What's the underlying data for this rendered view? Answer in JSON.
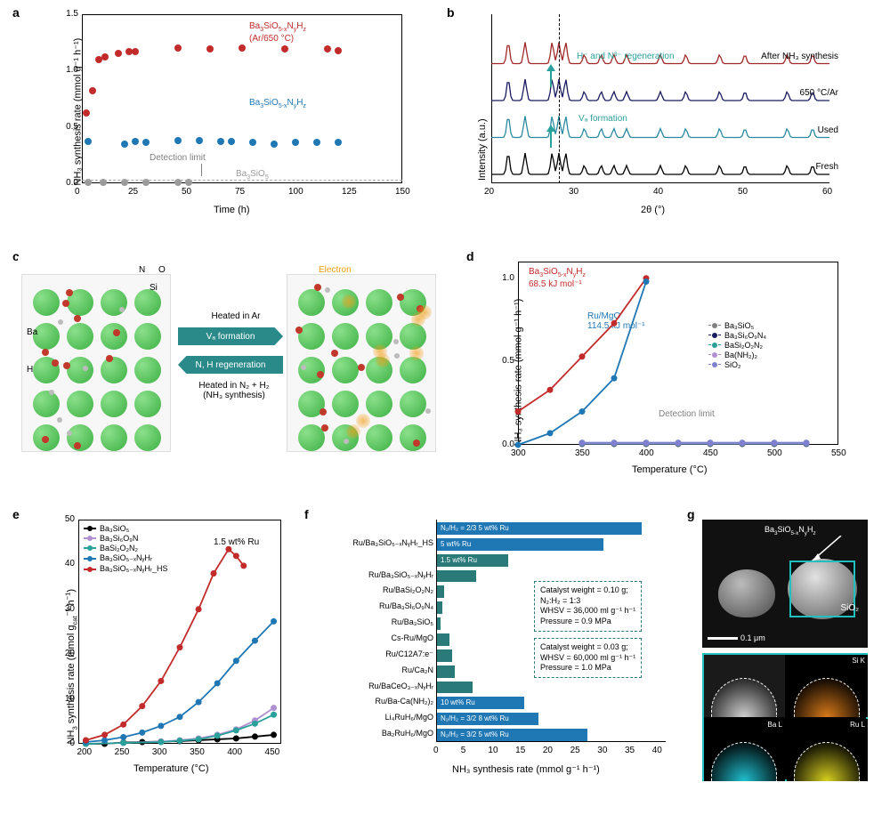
{
  "labels": {
    "a": "a",
    "b": "b",
    "c": "c",
    "d": "d",
    "e": "e",
    "f": "f",
    "g": "g"
  },
  "panel_a": {
    "type": "scatter",
    "x_label": "Time (h)",
    "y_label": "NH₃ synthesis rate (mmol g⁻¹ h⁻¹)",
    "xlim": [
      0,
      150
    ],
    "xtick_step": 25,
    "ylim": [
      0,
      1.5
    ],
    "ytick_step": 0.5,
    "detection_text": "Detection limit",
    "series": [
      {
        "name": "Ba₃SiO₅₋ₓNᵧHᵣ (Ar/650 °C)",
        "label": "Ba₃SiO₅₋ₓNᵧHᵣ\n(Ar/650 °C)",
        "color": "#c32b2b",
        "x": [
          2,
          5,
          8,
          11,
          17,
          22,
          25,
          45,
          60,
          75,
          95,
          115,
          120
        ],
        "y": [
          0.62,
          0.82,
          1.1,
          1.12,
          1.15,
          1.17,
          1.17,
          1.2,
          1.19,
          1.2,
          1.19,
          1.19,
          1.18
        ]
      },
      {
        "name": "Ba₃SiO₅₋ₓNᵧHᵣ",
        "label": "Ba₃SiO₅₋ₓNᵧHᵣ",
        "color": "#1f77b4",
        "x": [
          3,
          20,
          25,
          30,
          45,
          55,
          65,
          70,
          80,
          90,
          100,
          110,
          120
        ],
        "y": [
          0.37,
          0.35,
          0.37,
          0.36,
          0.38,
          0.38,
          0.37,
          0.37,
          0.36,
          0.35,
          0.36,
          0.36,
          0.36
        ]
      },
      {
        "name": "Ba₃SiO₅",
        "label": "Ba₃SiO₅",
        "color": "#9a9a9a",
        "x": [
          3,
          10,
          20,
          30,
          45,
          50
        ],
        "y": [
          0.01,
          0.01,
          0.01,
          0.01,
          0.01,
          0.01
        ]
      }
    ]
  },
  "panel_b": {
    "type": "xrd",
    "x_label": "2θ (°)",
    "y_label": "Intensity (a.u.)",
    "xlim": [
      20,
      60
    ],
    "xtick_step": 10,
    "traces": [
      {
        "label": "After NH₃ synthesis",
        "color": "#a02828"
      },
      {
        "label": "650 °C/Ar",
        "color": "#1a1a60"
      },
      {
        "label": "Used",
        "color": "#2a8aa0"
      },
      {
        "label": "Fresh",
        "color": "#000000"
      }
    ],
    "annotations": [
      {
        "text": "H⁻ and N³⁻ regeneration",
        "color": "#2aa09a"
      },
      {
        "text": "Vₐ formation",
        "color": "#2aa09a"
      }
    ],
    "peak_dash_x": 28
  },
  "panel_c": {
    "type": "schematic",
    "top_text": "Heated in Ar",
    "band1": "Vₐ formation",
    "band2": "N, H regeneration",
    "bottom_text": "Heated in N₂ + H₂\n(NH₃ synthesis)",
    "legend": {
      "N": "N",
      "O": "O",
      "Si": "Si",
      "Ba": "Ba",
      "H": "H",
      "Electron": "Electron"
    },
    "colors": {
      "Ba": "#3cb043",
      "O": "#c0392b",
      "N": "#2c3e50",
      "Si": "#6a5acd",
      "H": "#bcbcbc",
      "e": "#f39c12",
      "band": "#2a8a8a"
    }
  },
  "panel_d": {
    "type": "line",
    "x_label": "Temperature (°C)",
    "y_label": "NH₃ synthesis rate (mmol g⁻¹ h⁻¹)",
    "xlim": [
      300,
      550
    ],
    "xtick_step": 50,
    "ylim": [
      0,
      1.1
    ],
    "yticks": [
      0,
      0.5,
      1.0
    ],
    "detection_text": "Detection limit",
    "legend": [
      {
        "name": "Ba₃SiO₅",
        "marker": "square",
        "color": "#808080"
      },
      {
        "name": "Ba₃Si₆O₉N₄",
        "marker": "circle",
        "color": "#1a1a60"
      },
      {
        "name": "BaSi₂O₂N₂",
        "marker": "triangle",
        "color": "#2aa09a"
      },
      {
        "name": "Ba(NH₂)₂",
        "marker": "tri-down",
        "color": "#b090d0"
      },
      {
        "name": "SiO₂",
        "marker": "diamond",
        "color": "#8080d0"
      }
    ],
    "main": [
      {
        "name": "Ba₃SiO₅₋ₓNᵧHᵣ",
        "sub": "68.5 kJ mol⁻¹",
        "color": "#c32b2b",
        "x": [
          300,
          325,
          350,
          375,
          400
        ],
        "y": [
          0.2,
          0.33,
          0.53,
          0.73,
          1.0
        ]
      },
      {
        "name": "Ru/MgO",
        "sub": "114.5 kJ mol⁻¹",
        "color": "#1f77b4",
        "x": [
          300,
          325,
          350,
          375,
          400
        ],
        "y": [
          0.0,
          0.07,
          0.2,
          0.4,
          0.98
        ]
      }
    ]
  },
  "panel_e": {
    "type": "line",
    "x_label": "Temperature (°C)",
    "y_label": "NH₃ synthesis rate (mmol g_cat⁻¹ h⁻¹)",
    "xlim": [
      190,
      460
    ],
    "xtick_step": 50,
    "start_tick": 200,
    "ylim": [
      0,
      50
    ],
    "ytick_step": 10,
    "ru_text": "1.5 wt% Ru",
    "series": [
      {
        "name": "Ba₃SiO₅",
        "color": "#000000",
        "x": [
          200,
          225,
          250,
          275,
          300,
          325,
          350,
          375,
          400,
          425,
          450
        ],
        "y": [
          0,
          0,
          0.3,
          0.4,
          0.5,
          0.6,
          0.8,
          1.0,
          1.2,
          1.6,
          2.0
        ]
      },
      {
        "name": "Ba₃Si₆O₉N",
        "color": "#b090d0",
        "x": [
          200,
          250,
          300,
          325,
          350,
          375,
          400,
          425,
          450
        ],
        "y": [
          0,
          0.2,
          0.5,
          0.8,
          1.2,
          2.0,
          3.2,
          5.2,
          8.0
        ]
      },
      {
        "name": "BaSi₂O₂N₂",
        "color": "#2aa09a",
        "x": [
          200,
          250,
          300,
          325,
          350,
          375,
          400,
          425,
          450
        ],
        "y": [
          0,
          0.2,
          0.4,
          0.7,
          1.0,
          1.8,
          3.0,
          4.5,
          6.5
        ]
      },
      {
        "name": "Ba₃SiO₅₋ₓNᵧHᵣ",
        "color": "#1f77b4",
        "x": [
          200,
          225,
          250,
          275,
          300,
          325,
          350,
          375,
          400,
          425,
          450
        ],
        "y": [
          0.4,
          0.8,
          1.5,
          2.5,
          4.0,
          6.0,
          9.3,
          13.5,
          18.5,
          23.0,
          27.3
        ]
      },
      {
        "name": "Ba₃SiO₅₋ₓNᵧHᵣ_HS",
        "color": "#c32b2b",
        "x": [
          200,
          225,
          250,
          275,
          300,
          325,
          350,
          370,
          390,
          400,
          410
        ],
        "y": [
          0.8,
          2.0,
          4.3,
          8.4,
          14.0,
          21.5,
          30.0,
          38.0,
          43.4,
          41.9,
          39.7
        ]
      }
    ]
  },
  "panel_f": {
    "type": "barh",
    "x_label": "NH₃ synthesis rate (mmol g⁻¹ h⁻¹)",
    "xlim": [
      0,
      42
    ],
    "xtick_step": 5,
    "bars": [
      {
        "label": "",
        "value": 37.5,
        "color": "#1f77b4",
        "inner": "N₂/H₂ = 2/3   5 wt% Ru"
      },
      {
        "label": "Ru/Ba₃SiO₅₋ₓNᵧHᵣ_HS",
        "value": 30.5,
        "color": "#1f77b4",
        "inner": "5 wt% Ru"
      },
      {
        "label": "",
        "value": 13.0,
        "color": "#2a7a7a",
        "inner": "1.5 wt% Ru"
      },
      {
        "label": "Ru/Ba₃SiO₅₋ₓNᵧHᵣ",
        "value": 7.2,
        "color": "#2a7a7a"
      },
      {
        "label": "Ru/BaSi₂O₂N₂",
        "value": 1.3,
        "color": "#2a7a7a"
      },
      {
        "label": "Ru/Ba₃Si₆O₉N₄",
        "value": 1.0,
        "color": "#2a7a7a"
      },
      {
        "label": "Ru/Ba₃SiO₅",
        "value": 0.7,
        "color": "#2a7a7a"
      },
      {
        "label": "Cs-Ru/MgO",
        "value": 2.2,
        "color": "#2a7a7a"
      },
      {
        "label": "Ru/C12A7:e⁻",
        "value": 2.8,
        "color": "#2a7a7a"
      },
      {
        "label": "Ru/Ca₂N",
        "value": 3.2,
        "color": "#2a7a7a"
      },
      {
        "label": "Ru/BaCeO₃₋ₓNᵧHᵣ",
        "value": 6.5,
        "color": "#2a7a7a"
      },
      {
        "label": "Ru/Ba-Ca(NH₂)₂",
        "value": 16.0,
        "color": "#1f77b4",
        "inner": "10 wt% Ru"
      },
      {
        "label": "Li₄RuH₆/MgO",
        "value": 18.5,
        "color": "#1f77b4",
        "inner": "N₂/H₂ = 3/2   8 wt% Ru"
      },
      {
        "label": "Ba₂RuH₆/MgO",
        "value": 27.5,
        "color": "#1f77b4",
        "inner": "N₂/H₂ = 3/2   5 wt% Ru"
      }
    ],
    "info1": {
      "l1": "Catalyst weight = 0.10 g;",
      "l2": "N₂:H₂ = 1:3",
      "l3": "WHSV = 36,000 ml g⁻¹ h⁻¹",
      "l4": "Pressure = 0.9 MPa"
    },
    "info2": {
      "l1": "Catalyst weight = 0.03 g;",
      "l2": "WHSV = 60,000 ml g⁻¹ h⁻¹",
      "l3": "Pressure = 1.0 MPa"
    }
  },
  "panel_g": {
    "main_label": "Ba₃SiO₅₋ₓNᵧHᵣ",
    "sio2": "SiO₂",
    "scale": "0.1 μm",
    "eds": [
      {
        "label": "Si K",
        "color": "#d97a1a"
      },
      {
        "label": "Ba L",
        "color": "#20c0d0"
      },
      {
        "label": "Ru L",
        "color": "#d8d020"
      }
    ],
    "haadf_bg": "#333333"
  }
}
